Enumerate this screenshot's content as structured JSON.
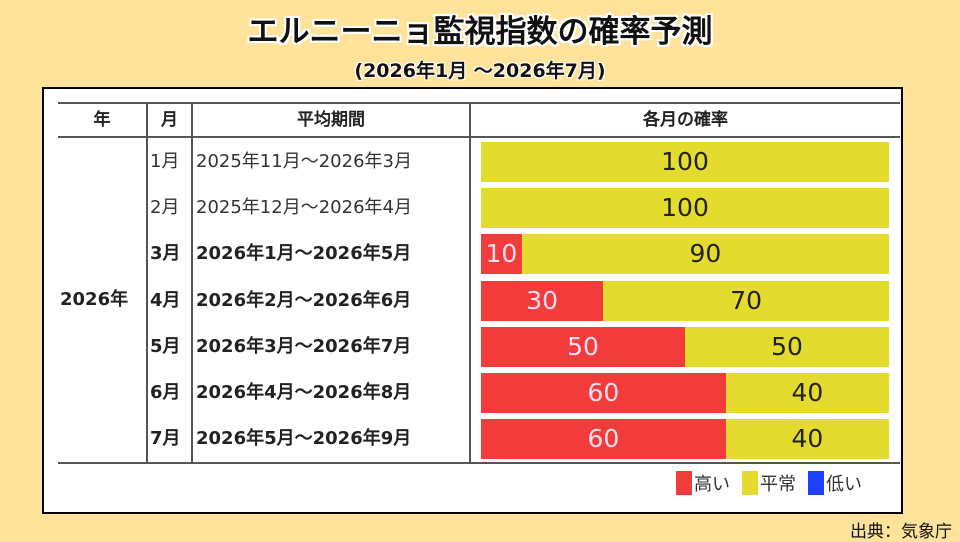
{
  "title": "エルニーニョ監視指数の確率予測",
  "subtitle": "(2026年1月 〜2026年7月)",
  "table": {
    "headers": [
      "年",
      "月",
      "平均期間",
      "各月の確率"
    ],
    "year": "2026年"
  },
  "chart_data": {
    "type": "bar",
    "stacked": true,
    "orientation": "horizontal",
    "categories": [
      "1月",
      "2月",
      "3月",
      "4月",
      "5月",
      "6月",
      "7月"
    ],
    "periods": [
      "2025年11月〜2026年3月",
      "2025年12月〜2026年4月",
      "2026年1月〜2026年5月",
      "2026年2月〜2026年6月",
      "2026年3月〜2026年7月",
      "2026年4月〜2026年8月",
      "2026年5月〜2026年9月"
    ],
    "bold_rows": [
      false,
      false,
      true,
      true,
      true,
      true,
      true
    ],
    "series": [
      {
        "name": "高い",
        "color": "#F23C3C",
        "values": [
          0,
          0,
          10,
          30,
          50,
          60,
          60
        ]
      },
      {
        "name": "平常",
        "color": "#E3DB2E",
        "values": [
          100,
          100,
          90,
          70,
          50,
          40,
          40
        ]
      },
      {
        "name": "低い",
        "color": "#1F3FFF",
        "values": [
          0,
          0,
          0,
          0,
          0,
          0,
          0
        ]
      }
    ],
    "xlim": [
      0,
      100
    ]
  },
  "source": "出典：気象庁"
}
